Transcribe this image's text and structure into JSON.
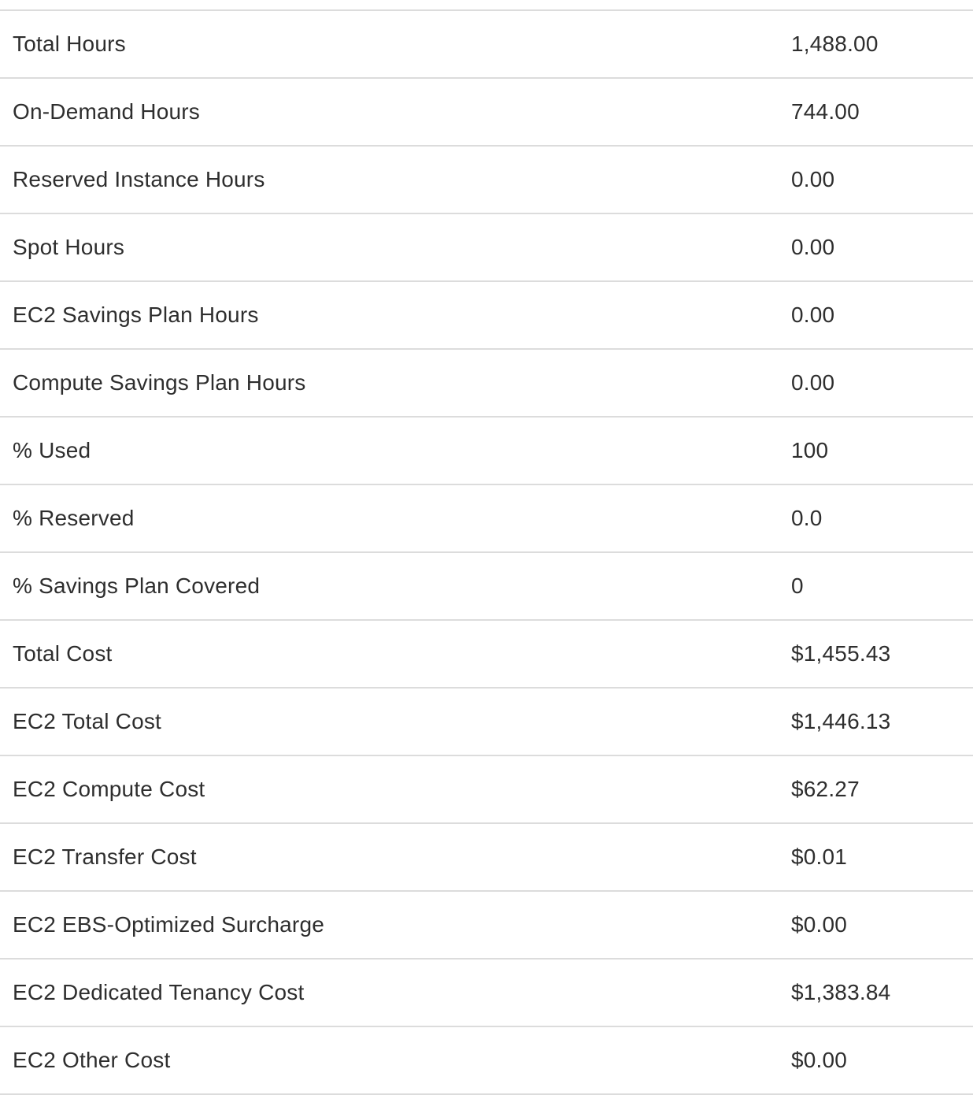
{
  "table": {
    "rows": [
      {
        "label": "Total Hours",
        "value": "1,488.00"
      },
      {
        "label": "On-Demand Hours",
        "value": "744.00"
      },
      {
        "label": "Reserved Instance Hours",
        "value": "0.00"
      },
      {
        "label": "Spot Hours",
        "value": "0.00"
      },
      {
        "label": "EC2 Savings Plan Hours",
        "value": "0.00"
      },
      {
        "label": "Compute Savings Plan Hours",
        "value": "0.00"
      },
      {
        "label": "% Used",
        "value": "100"
      },
      {
        "label": "% Reserved",
        "value": "0.0"
      },
      {
        "label": "% Savings Plan Covered",
        "value": "0"
      },
      {
        "label": "Total Cost",
        "value": "$1,455.43"
      },
      {
        "label": "EC2 Total Cost",
        "value": "$1,446.13"
      },
      {
        "label": "EC2 Compute Cost",
        "value": "$62.27"
      },
      {
        "label": "EC2 Transfer Cost",
        "value": "$0.01"
      },
      {
        "label": "EC2 EBS-Optimized Surcharge",
        "value": "$0.00"
      },
      {
        "label": "EC2 Dedicated Tenancy Cost",
        "value": "$1,383.84"
      },
      {
        "label": "EC2 Other Cost",
        "value": "$0.00"
      }
    ]
  },
  "colors": {
    "text": "#2e2e2e",
    "divider": "#dcdcdc",
    "background": "#ffffff"
  }
}
